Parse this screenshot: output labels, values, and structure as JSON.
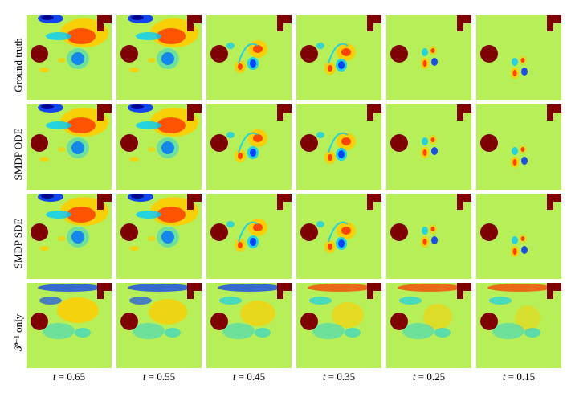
{
  "figure": {
    "row_labels": [
      "Ground truth",
      "SMDP ODE",
      "SMDP SDE",
      "only"
    ],
    "row_label_prefix_symbol": "𝒫̃⁻¹",
    "time_symbol": "t",
    "equals": "=",
    "columns": [
      "0.65",
      "0.55",
      "0.45",
      "0.35",
      "0.25",
      "0.15"
    ],
    "colormap": [
      "#00007f",
      "#0033ff",
      "#00ccff",
      "#6dff8a",
      "#b6ef57",
      "#ffcc00",
      "#ff3300",
      "#7f0000"
    ]
  }
}
